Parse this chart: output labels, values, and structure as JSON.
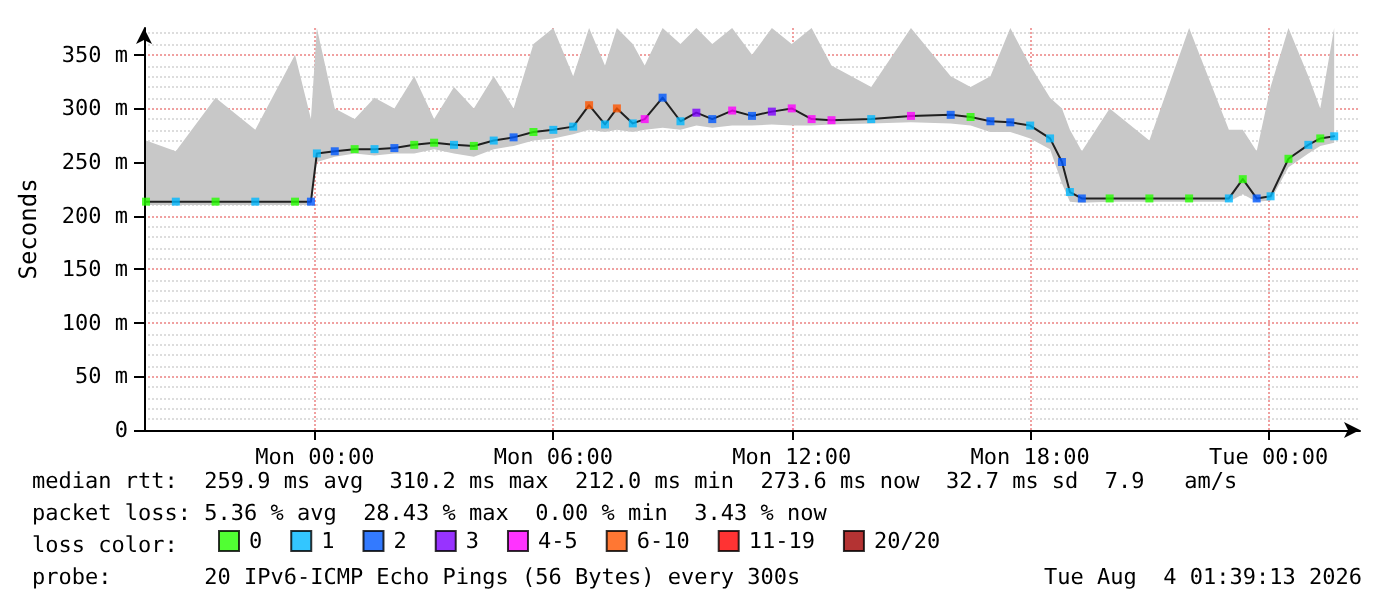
{
  "chart_data": {
    "type": "line",
    "ylabel": "Seconds",
    "xlim": [
      "2026-08-02T19:42",
      "2026-08-04T02:18"
    ],
    "ylim": [
      0,
      375
    ],
    "xticks": [
      {
        "value": "2026-08-03T00:00",
        "label": "Mon 00:00"
      },
      {
        "value": "2026-08-03T06:00",
        "label": "Mon 06:00"
      },
      {
        "value": "2026-08-03T12:00",
        "label": "Mon 12:00"
      },
      {
        "value": "2026-08-03T18:00",
        "label": "Mon 18:00"
      },
      {
        "value": "2026-08-04T00:00",
        "label": "Tue 00:00"
      }
    ],
    "yticks": [
      0,
      {
        "value": 50,
        "label": "50 m"
      },
      {
        "value": 100,
        "label": "100 m"
      },
      {
        "value": 150,
        "label": "150 m"
      },
      {
        "value": 200,
        "label": "200 m"
      },
      {
        "value": 250,
        "label": "250 m"
      },
      {
        "value": 300,
        "label": "300 m"
      },
      {
        "value": 350,
        "label": "350 m"
      }
    ],
    "grid": true,
    "legend": "bottom",
    "legend_title": "loss color:",
    "marker": "square",
    "line_style": "solid",
    "annotations": [
      "median rtt:  259.9 ms avg  310.2 ms max  212.0 ms min  273.6 ms now  32.7 ms sd  7.9   am/s",
      "packet loss: 5.36 % avg  28.43 % max  0.00 % min  3.43 % now",
      "probe:       20 IPv6-ICMP Echo Pings (56 Bytes) every 300s",
      "Tue Aug  4 01:39:13 2026"
    ],
    "x": [
      "2026-08-02T19:45",
      "2026-08-02T20:30",
      "2026-08-02T21:30",
      "2026-08-02T22:30",
      "2026-08-02T23:30",
      "2026-08-02T23:54",
      "2026-08-03T00:03",
      "2026-08-03T00:30",
      "2026-08-03T01:00",
      "2026-08-03T01:30",
      "2026-08-03T02:00",
      "2026-08-03T02:30",
      "2026-08-03T03:00",
      "2026-08-03T03:30",
      "2026-08-03T04:00",
      "2026-08-03T04:30",
      "2026-08-03T05:00",
      "2026-08-03T05:30",
      "2026-08-03T06:00",
      "2026-08-03T06:30",
      "2026-08-03T06:54",
      "2026-08-03T07:18",
      "2026-08-03T07:36",
      "2026-08-03T08:00",
      "2026-08-03T08:18",
      "2026-08-03T08:45",
      "2026-08-03T09:12",
      "2026-08-03T09:36",
      "2026-08-03T10:00",
      "2026-08-03T10:30",
      "2026-08-03T11:00",
      "2026-08-03T11:30",
      "2026-08-03T12:00",
      "2026-08-03T12:30",
      "2026-08-03T13:00",
      "2026-08-03T14:00",
      "2026-08-03T15:00",
      "2026-08-03T16:00",
      "2026-08-03T16:30",
      "2026-08-03T17:00",
      "2026-08-03T17:30",
      "2026-08-03T18:00",
      "2026-08-03T18:30",
      "2026-08-03T18:48",
      "2026-08-03T19:00",
      "2026-08-03T19:18",
      "2026-08-03T20:00",
      "2026-08-03T21:00",
      "2026-08-03T22:00",
      "2026-08-03T23:00",
      "2026-08-03T23:21",
      "2026-08-03T23:42",
      "2026-08-04T00:03",
      "2026-08-04T00:30",
      "2026-08-04T01:00",
      "2026-08-04T01:18",
      "2026-08-04T01:39"
    ],
    "series": [
      {
        "color": "#202020",
        "marker": "none",
        "values": [
          213,
          213,
          213,
          213,
          213,
          213,
          258,
          260,
          262,
          262,
          263,
          266,
          268,
          266,
          265,
          270,
          273,
          278,
          280,
          283,
          303,
          285,
          300,
          286,
          290,
          310,
          288,
          296,
          290,
          298,
          293,
          297,
          300,
          290,
          289,
          290,
          293,
          294,
          292,
          288,
          287,
          284,
          272,
          250,
          222,
          216,
          216,
          216,
          216,
          216,
          234,
          216,
          218,
          253,
          266,
          272,
          274
        ],
        "lower": [
          210,
          210,
          210,
          210,
          210,
          210,
          250,
          255,
          258,
          256,
          258,
          258,
          262,
          258,
          255,
          262,
          265,
          270,
          272,
          276,
          280,
          278,
          280,
          278,
          280,
          282,
          280,
          284,
          282,
          284,
          284,
          285,
          284,
          284,
          285,
          286,
          287,
          286,
          284,
          278,
          278,
          272,
          262,
          230,
          213,
          212,
          213,
          213,
          213,
          213,
          220,
          213,
          214,
          245,
          258,
          265,
          268
        ],
        "upper": [
          270,
          260,
          310,
          280,
          350,
          290,
          375,
          300,
          290,
          310,
          300,
          330,
          290,
          320,
          300,
          330,
          300,
          360,
          375,
          330,
          375,
          340,
          375,
          360,
          340,
          375,
          360,
          375,
          360,
          375,
          350,
          375,
          360,
          375,
          340,
          320,
          375,
          330,
          320,
          330,
          375,
          340,
          310,
          300,
          280,
          260,
          300,
          270,
          375,
          280,
          280,
          260,
          320,
          375,
          330,
          300,
          375
        ]
      },
      {
        "type": "scatter",
        "name": "0",
        "color": "#26ff00",
        "values": [
          213,
          null,
          213,
          null,
          213,
          null,
          null,
          null,
          262,
          null,
          null,
          266,
          268,
          null,
          265,
          null,
          null,
          278,
          null,
          null,
          null,
          null,
          null,
          null,
          null,
          null,
          null,
          null,
          null,
          null,
          null,
          null,
          null,
          null,
          null,
          null,
          null,
          null,
          292,
          null,
          null,
          null,
          null,
          null,
          null,
          null,
          216,
          216,
          216,
          null,
          234,
          null,
          null,
          253,
          null,
          272,
          null
        ]
      },
      {
        "type": "scatter",
        "name": "1",
        "color": "#00b8ff",
        "values": [
          null,
          213,
          null,
          213,
          null,
          null,
          258,
          null,
          null,
          262,
          null,
          null,
          null,
          266,
          null,
          270,
          null,
          null,
          280,
          283,
          null,
          285,
          null,
          286,
          null,
          null,
          288,
          null,
          null,
          null,
          null,
          null,
          null,
          null,
          null,
          290,
          null,
          null,
          null,
          null,
          null,
          284,
          272,
          null,
          222,
          null,
          null,
          null,
          null,
          216,
          null,
          null,
          218,
          null,
          266,
          null,
          274
        ]
      },
      {
        "type": "scatter",
        "name": "2",
        "color": "#0059ff",
        "values": [
          null,
          null,
          null,
          null,
          null,
          213,
          null,
          260,
          null,
          null,
          263,
          null,
          null,
          null,
          null,
          null,
          273,
          null,
          null,
          null,
          null,
          null,
          null,
          null,
          null,
          310,
          null,
          null,
          290,
          null,
          293,
          null,
          null,
          null,
          null,
          null,
          null,
          294,
          null,
          288,
          287,
          null,
          null,
          250,
          null,
          216,
          null,
          null,
          null,
          null,
          null,
          216,
          null,
          null,
          null,
          null,
          null
        ]
      },
      {
        "type": "scatter",
        "name": "3",
        "color": "#7e00ff",
        "values": [
          null,
          null,
          null,
          null,
          null,
          null,
          null,
          null,
          null,
          null,
          null,
          null,
          null,
          null,
          null,
          null,
          null,
          null,
          null,
          null,
          null,
          null,
          null,
          null,
          null,
          null,
          null,
          296,
          null,
          null,
          null,
          297,
          null,
          null,
          null,
          null,
          null,
          null,
          null,
          null,
          null,
          null,
          null,
          null,
          null,
          null,
          null,
          null,
          null,
          null,
          null,
          null,
          null,
          null,
          null,
          null,
          null
        ]
      },
      {
        "type": "scatter",
        "name": "4-5",
        "color": "#ff00ff",
        "values": [
          null,
          null,
          null,
          null,
          null,
          null,
          null,
          null,
          null,
          null,
          null,
          null,
          null,
          null,
          null,
          null,
          null,
          null,
          null,
          null,
          null,
          null,
          null,
          null,
          290,
          null,
          null,
          null,
          null,
          298,
          null,
          null,
          300,
          290,
          289,
          null,
          293,
          null,
          null,
          null,
          null,
          null,
          null,
          null,
          null,
          null,
          null,
          null,
          null,
          null,
          null,
          null,
          null,
          null,
          null,
          null,
          null
        ]
      },
      {
        "type": "scatter",
        "name": "6-10",
        "color": "#ff5500",
        "values": [
          null,
          null,
          null,
          null,
          null,
          null,
          null,
          null,
          null,
          null,
          null,
          null,
          null,
          null,
          null,
          null,
          null,
          null,
          null,
          null,
          303,
          null,
          300,
          null,
          null,
          null,
          null,
          null,
          null,
          null,
          null,
          null,
          null,
          null,
          null,
          null,
          null,
          null,
          null,
          null,
          null,
          null,
          null,
          null,
          null,
          null,
          null,
          null,
          null,
          null,
          null,
          null,
          null,
          null,
          null,
          null,
          null
        ]
      },
      {
        "type": "scatter",
        "name": "11-19",
        "color": "#ff0000",
        "values": [
          null,
          null,
          null,
          null,
          null,
          null,
          null,
          null,
          null,
          null,
          null,
          null,
          null,
          null,
          null,
          null,
          null,
          null,
          null,
          null,
          null,
          null,
          null,
          null,
          null,
          null,
          null,
          null,
          null,
          null,
          null,
          null,
          null,
          null,
          null,
          null,
          null,
          null,
          null,
          null,
          null,
          null,
          null,
          null,
          null,
          null,
          null,
          null,
          null,
          null,
          null,
          null,
          null,
          null,
          null,
          null,
          null
        ]
      },
      {
        "type": "scatter",
        "name": "20/20",
        "color": "#a10000",
        "values": [
          null,
          null,
          null,
          null,
          null,
          null,
          null,
          null,
          null,
          null,
          null,
          null,
          null,
          null,
          null,
          null,
          null,
          null,
          null,
          null,
          null,
          null,
          null,
          null,
          null,
          null,
          null,
          null,
          null,
          null,
          null,
          null,
          null,
          null,
          null,
          null,
          null,
          null,
          null,
          null,
          null,
          null,
          null,
          null,
          null,
          null,
          null,
          null,
          null,
          null,
          null,
          null,
          null,
          null,
          null,
          null,
          null
        ]
      }
    ]
  }
}
